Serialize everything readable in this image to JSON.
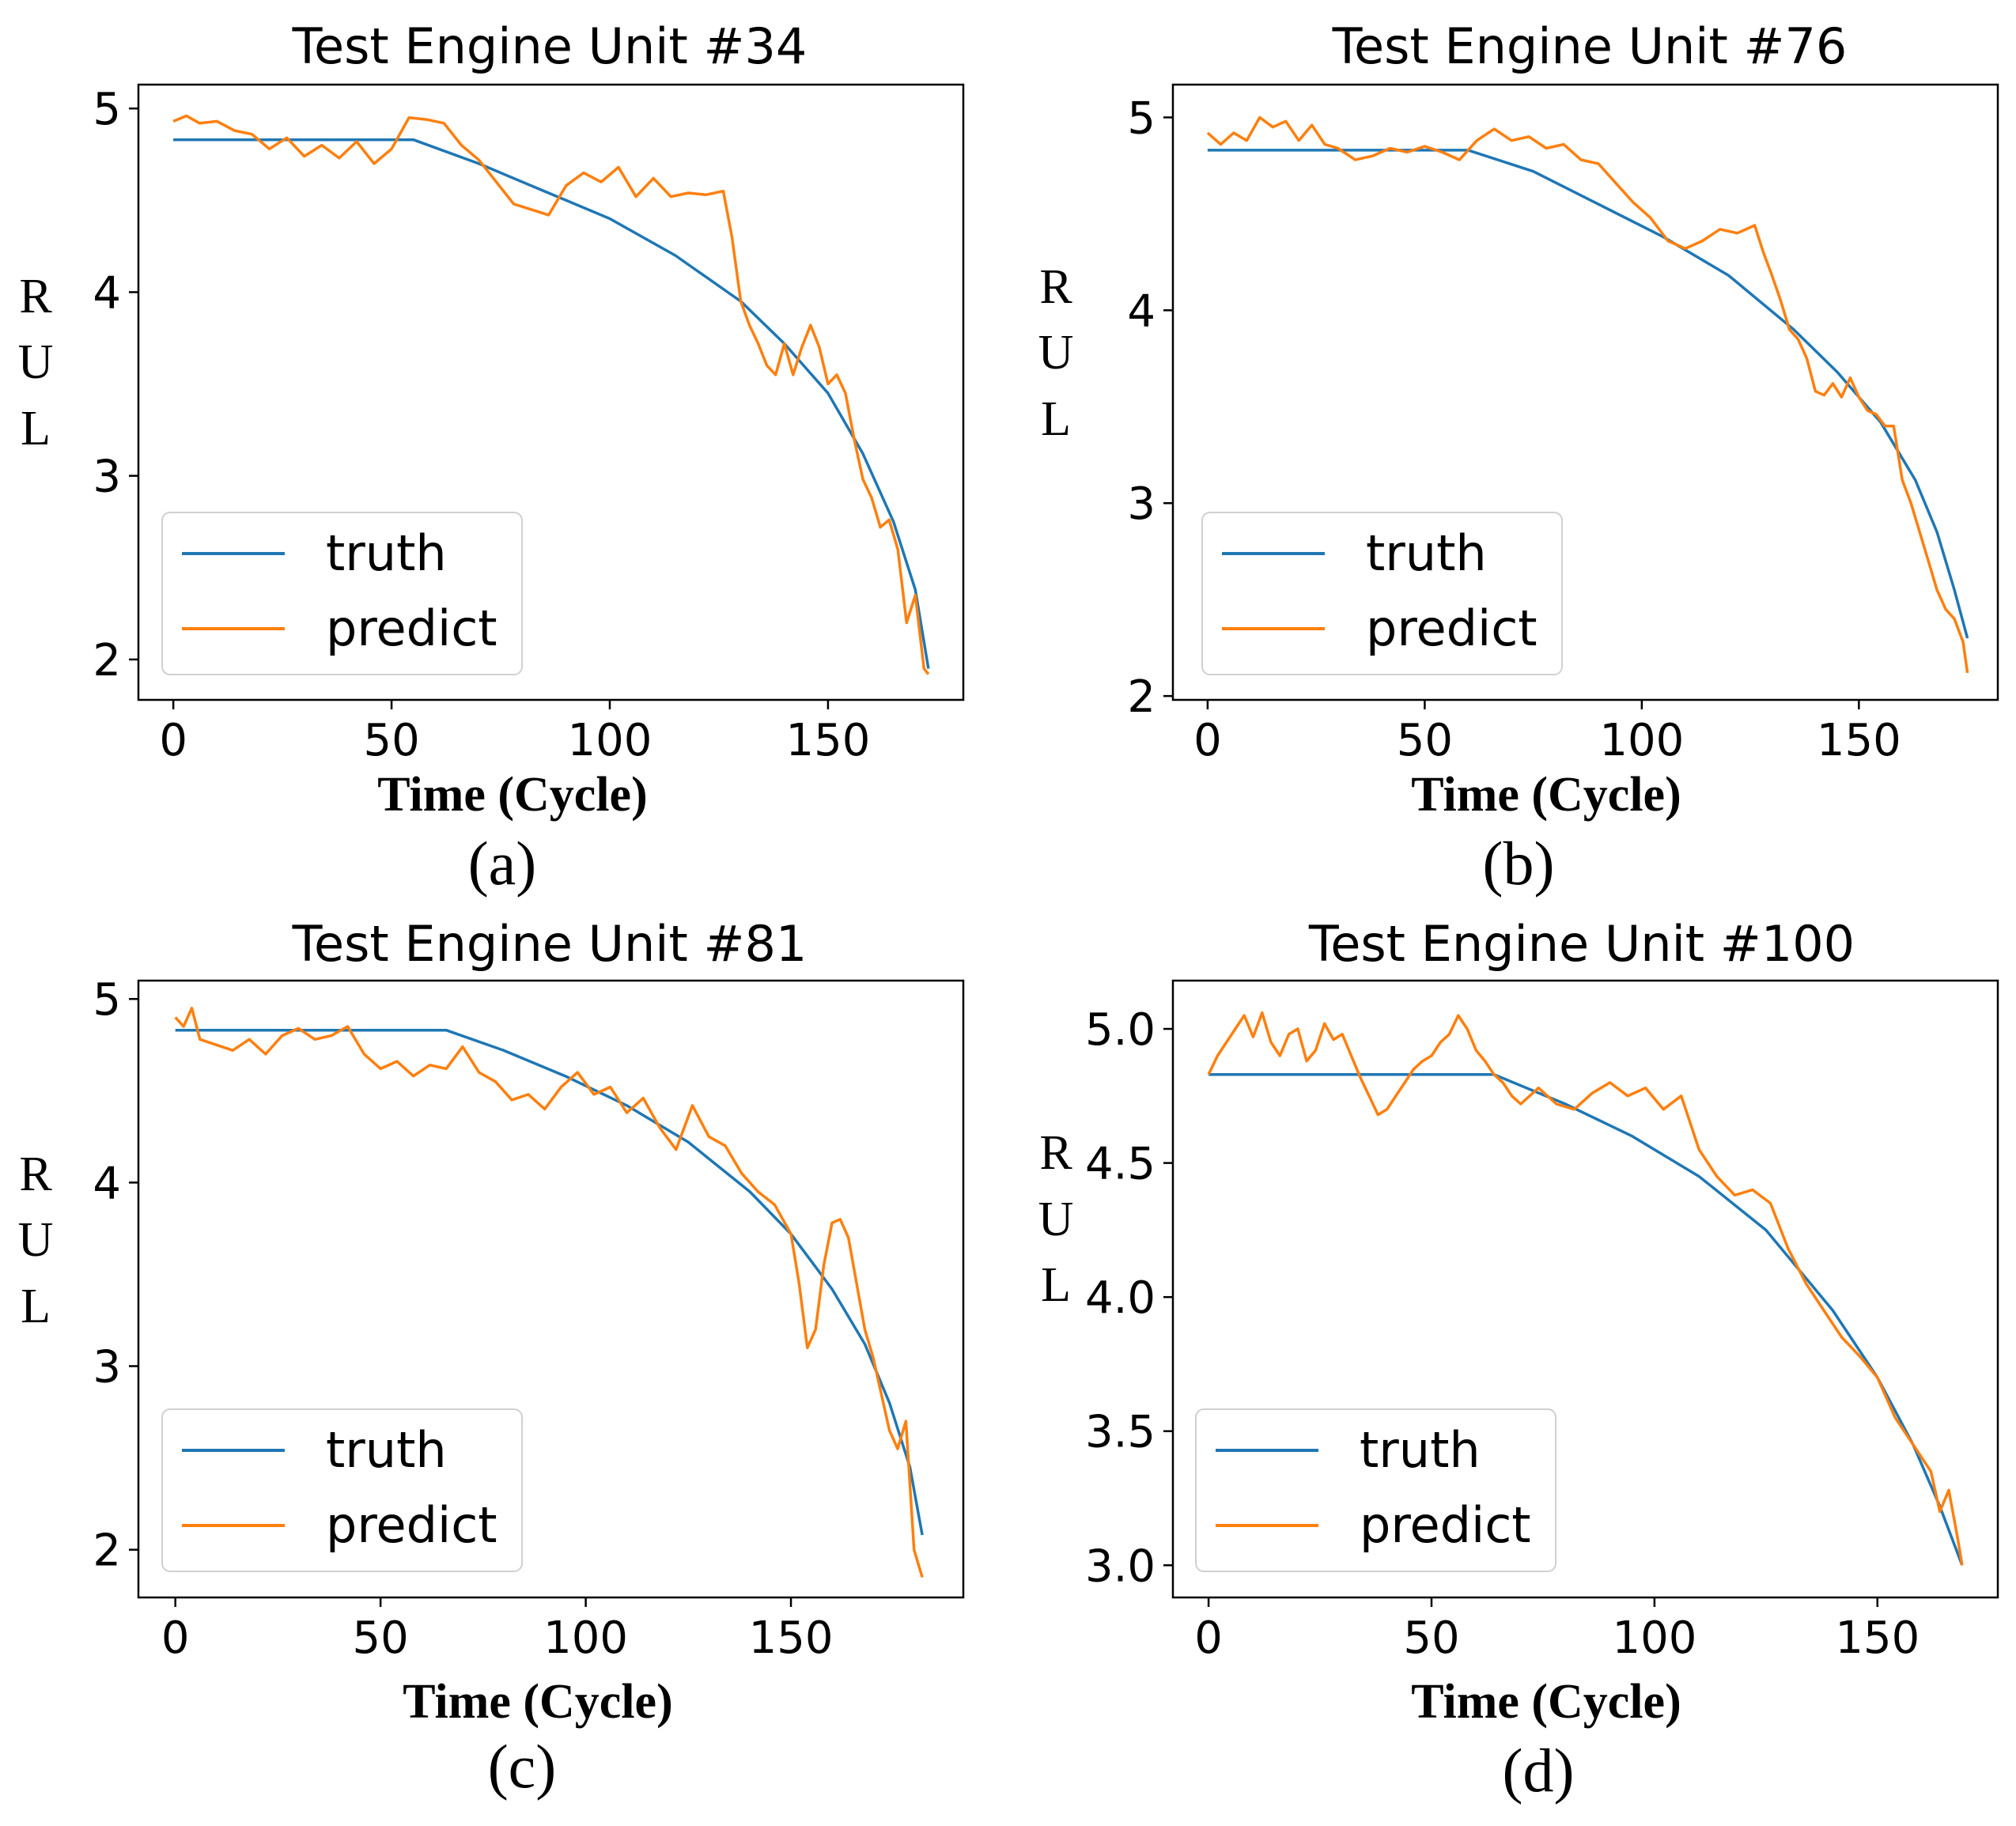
{
  "colors": {
    "truth": "#1f77b4",
    "predict": "#ff7f0e"
  },
  "chart_data": [
    {
      "type": "line",
      "title": "Test Engine Unit #34",
      "caption": "(a)",
      "xlabel": "Time (Cycle)",
      "ylabel": "RUL",
      "xlim": [
        -8,
        181
      ],
      "ylim": [
        1.78,
        5.13
      ],
      "xticks": [
        0,
        50,
        100,
        150
      ],
      "yticks": [
        2,
        3,
        4,
        5
      ],
      "ytick_labels": [
        "2",
        "3",
        "4",
        "5"
      ],
      "legend": [
        "truth",
        "predict"
      ],
      "legend_position": "lower-left",
      "series": [
        {
          "name": "truth",
          "x": [
            0,
            55,
            70,
            85,
            100,
            115,
            130,
            140,
            150,
            158,
            165,
            170,
            173
          ],
          "y": [
            4.83,
            4.83,
            4.7,
            4.55,
            4.4,
            4.2,
            3.95,
            3.72,
            3.45,
            3.12,
            2.75,
            2.38,
            1.95
          ]
        },
        {
          "name": "predict",
          "x": [
            0,
            3,
            6,
            10,
            14,
            18,
            22,
            26,
            30,
            34,
            38,
            42,
            46,
            50,
            54,
            58,
            62,
            66,
            70,
            74,
            78,
            82,
            86,
            90,
            94,
            98,
            102,
            106,
            110,
            114,
            118,
            122,
            126,
            128,
            130,
            132,
            134,
            136,
            138,
            140,
            142,
            144,
            146,
            148,
            150,
            152,
            154,
            156,
            158,
            160,
            162,
            164,
            166,
            168,
            170,
            172,
            173
          ],
          "y": [
            4.93,
            4.96,
            4.92,
            4.93,
            4.88,
            4.86,
            4.78,
            4.84,
            4.74,
            4.8,
            4.73,
            4.82,
            4.7,
            4.78,
            4.95,
            4.94,
            4.92,
            4.8,
            4.72,
            4.6,
            4.48,
            4.45,
            4.42,
            4.58,
            4.65,
            4.6,
            4.68,
            4.52,
            4.62,
            4.52,
            4.54,
            4.53,
            4.55,
            4.3,
            3.95,
            3.82,
            3.72,
            3.6,
            3.55,
            3.72,
            3.55,
            3.7,
            3.82,
            3.7,
            3.5,
            3.55,
            3.45,
            3.2,
            2.98,
            2.88,
            2.72,
            2.76,
            2.6,
            2.2,
            2.35,
            1.95,
            1.92
          ]
        }
      ]
    },
    {
      "type": "line",
      "title": "Test Engine Unit #76",
      "caption": "(b)",
      "xlabel": "Time (Cycle)",
      "ylabel": "RUL",
      "xlim": [
        -8,
        182
      ],
      "ylim": [
        1.98,
        5.17
      ],
      "xticks": [
        0,
        50,
        100,
        150
      ],
      "yticks": [
        2,
        3,
        4,
        5
      ],
      "ytick_labels": [
        "2",
        "3",
        "4",
        "5"
      ],
      "legend": [
        "truth",
        "predict"
      ],
      "legend_position": "lower-left",
      "series": [
        {
          "name": "truth",
          "x": [
            0,
            60,
            75,
            90,
            105,
            120,
            135,
            145,
            155,
            163,
            168,
            172,
            175
          ],
          "y": [
            4.83,
            4.83,
            4.72,
            4.55,
            4.38,
            4.18,
            3.9,
            3.68,
            3.42,
            3.12,
            2.85,
            2.55,
            2.3
          ]
        },
        {
          "name": "predict",
          "x": [
            0,
            3,
            6,
            9,
            12,
            15,
            18,
            21,
            24,
            27,
            30,
            34,
            38,
            42,
            46,
            50,
            54,
            58,
            62,
            66,
            70,
            74,
            78,
            82,
            86,
            90,
            94,
            98,
            102,
            106,
            110,
            114,
            118,
            122,
            126,
            128,
            130,
            132,
            134,
            136,
            138,
            140,
            142,
            144,
            146,
            148,
            150,
            152,
            154,
            156,
            158,
            160,
            162,
            164,
            166,
            168,
            170,
            172,
            174,
            175
          ],
          "y": [
            4.92,
            4.86,
            4.92,
            4.88,
            5.0,
            4.95,
            4.98,
            4.88,
            4.96,
            4.86,
            4.84,
            4.78,
            4.8,
            4.84,
            4.82,
            4.85,
            4.82,
            4.78,
            4.88,
            4.94,
            4.88,
            4.9,
            4.84,
            4.86,
            4.78,
            4.76,
            4.66,
            4.56,
            4.48,
            4.36,
            4.32,
            4.36,
            4.42,
            4.4,
            4.44,
            4.3,
            4.18,
            4.05,
            3.9,
            3.85,
            3.75,
            3.58,
            3.56,
            3.62,
            3.55,
            3.65,
            3.55,
            3.48,
            3.46,
            3.4,
            3.4,
            3.12,
            3.0,
            2.85,
            2.7,
            2.55,
            2.45,
            2.4,
            2.28,
            2.12
          ]
        }
      ]
    },
    {
      "type": "line",
      "title": "Test Engine Unit #81",
      "caption": "(c)",
      "xlabel": "Time (Cycle)",
      "ylabel": "RUL",
      "xlim": [
        -9,
        192
      ],
      "ylim": [
        1.74,
        5.1
      ],
      "xticks": [
        0,
        50,
        100,
        150
      ],
      "yticks": [
        2,
        3,
        4,
        5
      ],
      "ytick_labels": [
        "2",
        "3",
        "4",
        "5"
      ],
      "legend": [
        "truth",
        "predict"
      ],
      "legend_position": "lower-left",
      "series": [
        {
          "name": "truth",
          "x": [
            0,
            66,
            80,
            95,
            110,
            125,
            140,
            150,
            160,
            168,
            174,
            179,
            182
          ],
          "y": [
            4.83,
            4.83,
            4.72,
            4.58,
            4.42,
            4.22,
            3.95,
            3.72,
            3.42,
            3.12,
            2.8,
            2.45,
            2.08
          ]
        },
        {
          "name": "predict",
          "x": [
            0,
            2,
            4,
            6,
            10,
            14,
            18,
            22,
            26,
            30,
            34,
            38,
            42,
            46,
            50,
            54,
            58,
            62,
            66,
            70,
            74,
            78,
            82,
            86,
            90,
            94,
            98,
            102,
            106,
            110,
            114,
            118,
            122,
            126,
            130,
            134,
            138,
            142,
            146,
            150,
            152,
            154,
            156,
            158,
            160,
            162,
            164,
            166,
            168,
            170,
            172,
            174,
            176,
            178,
            180,
            182
          ],
          "y": [
            4.9,
            4.85,
            4.95,
            4.78,
            4.75,
            4.72,
            4.78,
            4.7,
            4.8,
            4.84,
            4.78,
            4.8,
            4.85,
            4.7,
            4.62,
            4.66,
            4.58,
            4.64,
            4.62,
            4.74,
            4.6,
            4.55,
            4.45,
            4.48,
            4.4,
            4.52,
            4.6,
            4.48,
            4.52,
            4.38,
            4.46,
            4.3,
            4.18,
            4.42,
            4.25,
            4.2,
            4.05,
            3.95,
            3.88,
            3.72,
            3.45,
            3.1,
            3.2,
            3.55,
            3.78,
            3.8,
            3.7,
            3.45,
            3.2,
            3.05,
            2.85,
            2.65,
            2.55,
            2.7,
            2.0,
            1.85
          ]
        }
      ]
    },
    {
      "type": "line",
      "title": "Test Engine Unit #100",
      "caption": "(d)",
      "xlabel": "Time (Cycle)",
      "ylabel": "RUL",
      "xlim": [
        -8,
        177
      ],
      "ylim": [
        2.88,
        5.18
      ],
      "xticks": [
        0,
        50,
        100,
        150
      ],
      "yticks": [
        3.0,
        3.5,
        4.0,
        4.5,
        5.0
      ],
      "ytick_labels": [
        "3.0",
        "3.5",
        "4.0",
        "4.5",
        "5.0"
      ],
      "legend": [
        "truth",
        "predict"
      ],
      "legend_position": "lower-left",
      "series": [
        {
          "name": "truth",
          "x": [
            0,
            64,
            80,
            95,
            110,
            125,
            140,
            150,
            158,
            164,
            169
          ],
          "y": [
            4.83,
            4.83,
            4.72,
            4.6,
            4.45,
            4.25,
            3.95,
            3.7,
            3.45,
            3.22,
            3.0
          ]
        },
        {
          "name": "predict",
          "x": [
            0,
            2,
            4,
            6,
            8,
            10,
            12,
            14,
            16,
            18,
            20,
            22,
            24,
            26,
            28,
            30,
            32,
            34,
            36,
            38,
            40,
            42,
            44,
            46,
            48,
            50,
            52,
            54,
            56,
            58,
            60,
            62,
            64,
            66,
            68,
            70,
            74,
            78,
            82,
            86,
            90,
            94,
            98,
            102,
            106,
            110,
            114,
            118,
            122,
            126,
            130,
            134,
            138,
            142,
            146,
            150,
            154,
            158,
            162,
            164,
            166,
            168,
            169
          ],
          "y": [
            4.83,
            4.9,
            4.95,
            5.0,
            5.05,
            4.97,
            5.06,
            4.95,
            4.9,
            4.98,
            5.0,
            4.88,
            4.92,
            5.02,
            4.96,
            4.98,
            4.9,
            4.82,
            4.75,
            4.68,
            4.7,
            4.75,
            4.8,
            4.85,
            4.88,
            4.9,
            4.95,
            4.98,
            5.05,
            5.0,
            4.92,
            4.88,
            4.83,
            4.8,
            4.75,
            4.72,
            4.78,
            4.72,
            4.7,
            4.76,
            4.8,
            4.75,
            4.78,
            4.7,
            4.75,
            4.55,
            4.45,
            4.38,
            4.4,
            4.35,
            4.18,
            4.05,
            3.95,
            3.85,
            3.78,
            3.7,
            3.55,
            3.45,
            3.35,
            3.2,
            3.28,
            3.1,
            3.0
          ]
        }
      ]
    }
  ]
}
